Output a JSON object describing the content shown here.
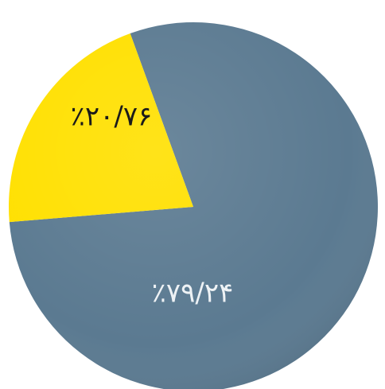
{
  "chart_data": {
    "type": "pie",
    "slices": [
      {
        "label": "٪۷۹/۲۴",
        "value": 79.24,
        "color": "#5b7a91",
        "label_color": "#eef2f5"
      },
      {
        "label": "٪۲۰/۷۶",
        "value": 20.76,
        "color": "#ffe000",
        "label_color": "#1a1a1a"
      }
    ],
    "title": "",
    "legend": "none"
  }
}
